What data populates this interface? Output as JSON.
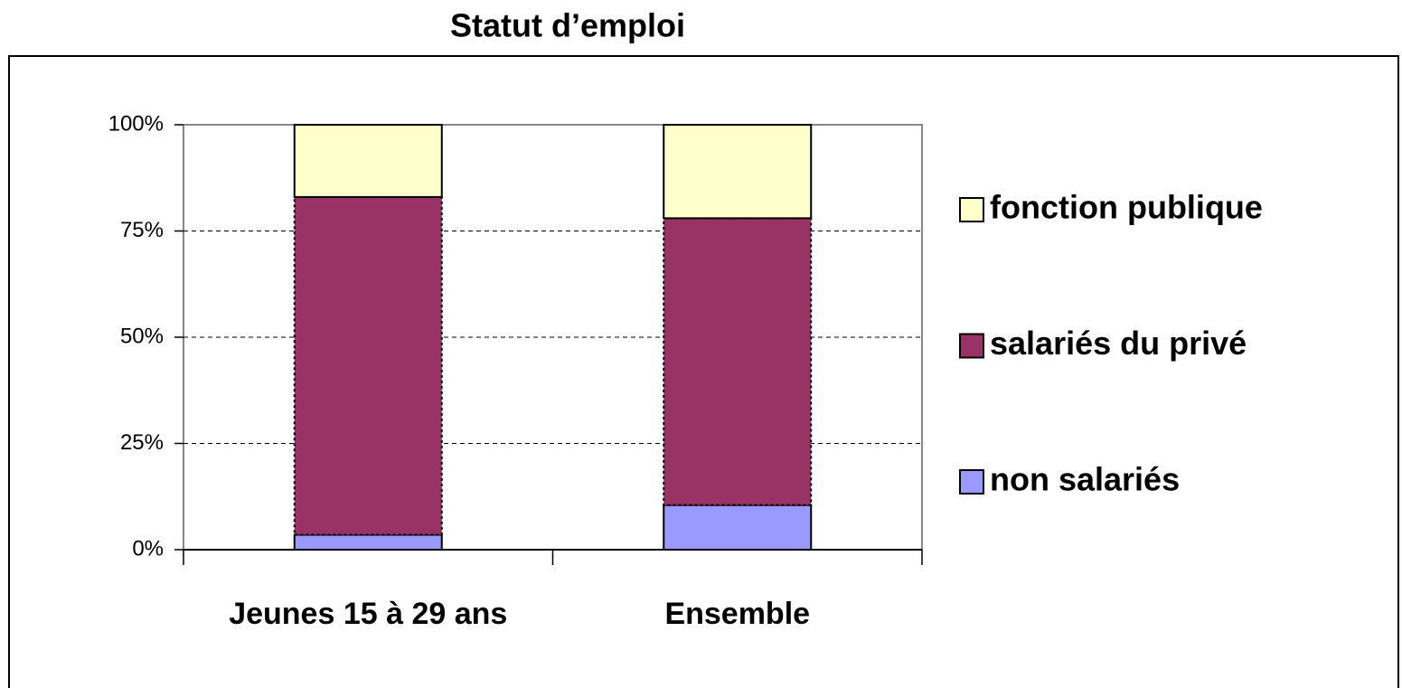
{
  "chart_data": {
    "type": "stacked_bar",
    "title": "Statut d’emploi",
    "categories": [
      "Jeunes 15 à 29 ans",
      "Ensemble"
    ],
    "series": [
      {
        "name": "non salariés",
        "color": "#9999ff",
        "values": [
          3.5,
          10.5
        ]
      },
      {
        "name": "salariés du privé",
        "color": "#993366",
        "values": [
          79.5,
          67.5
        ]
      },
      {
        "name": "fonction publique",
        "color": "#ffffcc",
        "values": [
          17,
          22
        ]
      }
    ],
    "ylim": [
      0,
      100
    ],
    "yticks": [
      {
        "value": 0,
        "label": "0%"
      },
      {
        "value": 25,
        "label": "25%"
      },
      {
        "value": 50,
        "label": "50%"
      },
      {
        "value": 75,
        "label": "75%"
      },
      {
        "value": 100,
        "label": "100%"
      }
    ],
    "grid": true,
    "legend": "right"
  }
}
